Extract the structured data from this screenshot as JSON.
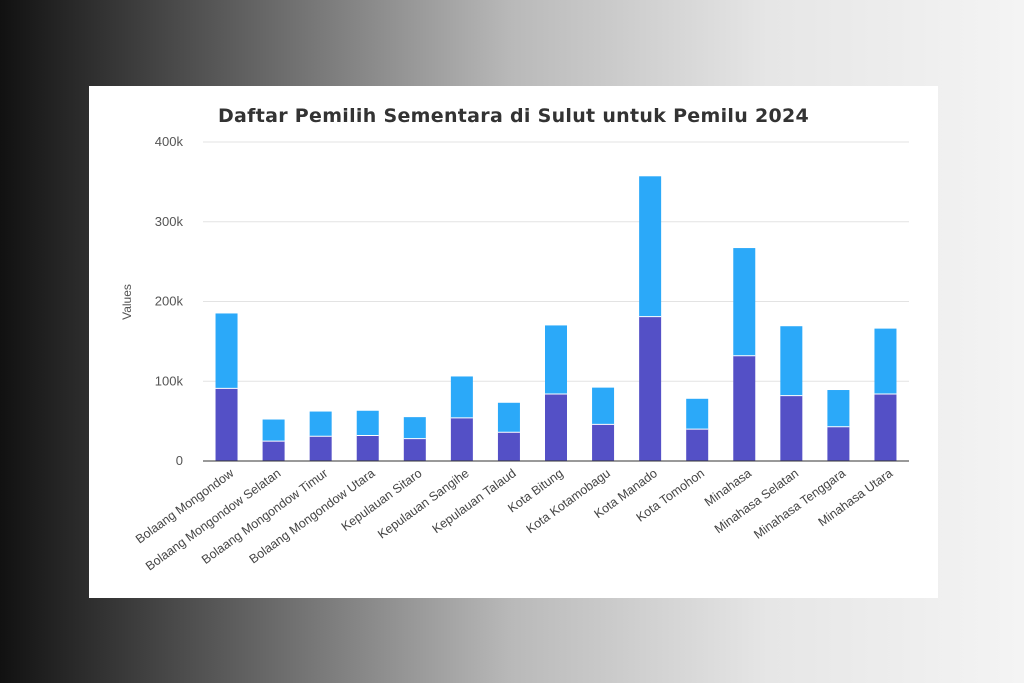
{
  "chart_data": {
    "type": "bar",
    "stacked": true,
    "title": "Daftar Pemilih Sementara di Sulut untuk Pemilu 2024",
    "ylabel": "Values",
    "xlabel": "",
    "ylim": [
      0,
      400000
    ],
    "yticks": [
      0,
      100000,
      200000,
      300000,
      400000
    ],
    "ytick_labels": [
      "0",
      "100k",
      "200k",
      "300k",
      "400k"
    ],
    "grid": true,
    "legend": "none",
    "categories": [
      "Bolaang Mongondow",
      "Bolaang Mongondow Selatan",
      "Bolaang Mongondow Timur",
      "Bolaang Mongondow Utara",
      "Kepulauan Sitaro",
      "Kepulauan Sangihe",
      "Kepulauan Talaud",
      "Kota Bitung",
      "Kota Kotamobagu",
      "Kota Manado",
      "Kota Tomohon",
      "Minahasa",
      "Minahasa Selatan",
      "Minahasa Tenggara",
      "Minahasa Utara"
    ],
    "series": [
      {
        "color": "#5450c6",
        "values": [
          91000,
          25000,
          31000,
          32000,
          28000,
          54000,
          36000,
          84000,
          46000,
          181000,
          40000,
          132000,
          82000,
          43000,
          84000
        ]
      },
      {
        "color": "#2ba9f9",
        "values": [
          94000,
          27000,
          31000,
          31000,
          27000,
          52000,
          37000,
          86000,
          46000,
          176000,
          38000,
          135000,
          87000,
          46000,
          82000
        ]
      }
    ]
  }
}
